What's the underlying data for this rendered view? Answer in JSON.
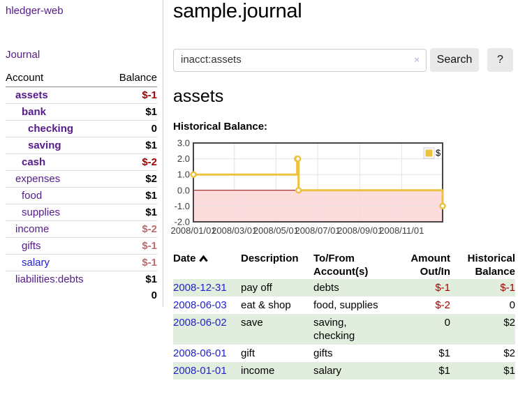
{
  "sidebar": {
    "app_title": "hledger-web",
    "journal_link": "Journal",
    "table": {
      "headers": [
        "Account",
        "Balance"
      ],
      "rows": [
        {
          "name": "assets",
          "indent": 1,
          "strong": true,
          "color": "purple",
          "balance": "$-1",
          "neg": "strong"
        },
        {
          "name": "bank",
          "indent": 2,
          "strong": true,
          "color": "purple",
          "balance": "$1",
          "neg": null
        },
        {
          "name": "checking",
          "indent": 3,
          "strong": true,
          "color": "purple",
          "balance": "0",
          "neg": null
        },
        {
          "name": "saving",
          "indent": 3,
          "strong": true,
          "color": "purple",
          "balance": "$1",
          "neg": null
        },
        {
          "name": "cash",
          "indent": 2,
          "strong": true,
          "color": "purple",
          "balance": "$-2",
          "neg": "strong"
        },
        {
          "name": "expenses",
          "indent": 1,
          "strong": false,
          "color": "purple",
          "balance": "$2",
          "neg": null
        },
        {
          "name": "food",
          "indent": 2,
          "strong": false,
          "color": "purple",
          "balance": "$1",
          "neg": null
        },
        {
          "name": "supplies",
          "indent": 2,
          "strong": false,
          "color": "purple",
          "balance": "$1",
          "neg": null
        },
        {
          "name": "income",
          "indent": 1,
          "strong": false,
          "color": "purple",
          "balance": "$-2",
          "neg": "soft"
        },
        {
          "name": "gifts",
          "indent": 2,
          "strong": false,
          "color": "purple",
          "balance": "$-1",
          "neg": "soft"
        },
        {
          "name": "salary",
          "indent": 2,
          "strong": false,
          "color": "blue",
          "balance": "$-1",
          "neg": "soft"
        },
        {
          "name": "liabilities:debts",
          "indent": 1,
          "strong": false,
          "color": "purple",
          "balance": "$1",
          "neg": null
        }
      ],
      "total": "0"
    }
  },
  "header": {
    "title": "sample.journal"
  },
  "search": {
    "value": "inacct:assets",
    "clear_icon": "×",
    "search_button": "Search",
    "help_button": "?"
  },
  "main": {
    "account_heading": "assets"
  },
  "chart_data": {
    "type": "line",
    "step": true,
    "title": "Historical Balance:",
    "series": [
      {
        "name": "$",
        "color": "#edc240",
        "points": [
          [
            "2008-01-01",
            1.0
          ],
          [
            "2008-06-01",
            2.0
          ],
          [
            "2008-06-02",
            2.0
          ],
          [
            "2008-06-03",
            0.0
          ],
          [
            "2008-12-31",
            -1.0
          ]
        ]
      }
    ],
    "x_start": "2008-01-01",
    "x_end": "2008-12-31",
    "xticks": [
      {
        "date": "2008-01-01",
        "label": "2008/01/01"
      },
      {
        "date": "2008-03-01",
        "label": "2008/03/01"
      },
      {
        "date": "2008-05-01",
        "label": "2008/05/01"
      },
      {
        "date": "2008-07-01",
        "label": "2008/07/01"
      },
      {
        "date": "2008-09-01",
        "label": "2008/09/01"
      },
      {
        "date": "2008-11-01",
        "label": "2008/11/01"
      }
    ],
    "yticks": [
      3.0,
      2.0,
      1.0,
      0.0,
      -1.0,
      -2.0
    ],
    "ylim": [
      -2.0,
      3.0
    ],
    "legend": {
      "label": "$",
      "position": "top-right"
    },
    "grid": true
  },
  "register": {
    "columns": [
      {
        "label": "Date",
        "sort": "ascending"
      },
      {
        "label": "Description"
      },
      {
        "line1": "To/From",
        "line2": "Account(s)"
      },
      {
        "line1": "Amount",
        "line2": "Out/In"
      },
      {
        "line1": "Historical",
        "line2": "Balance"
      }
    ],
    "rows": [
      {
        "date": "2008-12-31",
        "description": "pay off",
        "accounts": [
          "debts"
        ],
        "amount": "$-1",
        "amount_negative": true,
        "balance": "$-1",
        "balance_negative": true,
        "shaded": true
      },
      {
        "date": "2008-06-03",
        "description": "eat & shop",
        "accounts": [
          "food, supplies"
        ],
        "amount": "$-2",
        "amount_negative": true,
        "balance": "0",
        "balance_negative": false,
        "shaded": false
      },
      {
        "date": "2008-06-02",
        "description": "save",
        "accounts": [
          "saving,",
          "checking"
        ],
        "amount": "0",
        "amount_negative": false,
        "balance": "$2",
        "balance_negative": false,
        "shaded": true
      },
      {
        "date": "2008-06-01",
        "description": "gift",
        "accounts": [
          "gifts"
        ],
        "amount": "$1",
        "amount_negative": false,
        "balance": "$2",
        "balance_negative": false,
        "shaded": false
      },
      {
        "date": "2008-01-01",
        "description": "income",
        "accounts": [
          "salary"
        ],
        "amount": "$1",
        "amount_negative": false,
        "balance": "$1",
        "balance_negative": false,
        "shaded": true
      }
    ]
  },
  "colors": {
    "link_purple": "#551a8b",
    "link_blue": "#2222cc",
    "negative_strong": "#a30000",
    "negative_soft": "#bd6b6b",
    "row_stripe_green": "#e2eedd",
    "chart_series_yellow": "#edc240",
    "chart_negative_fill": "#fcdcdc",
    "chart_zero_line": "#8b0000",
    "chart_border": "#454545",
    "button_gray": "#e9e9e9"
  }
}
